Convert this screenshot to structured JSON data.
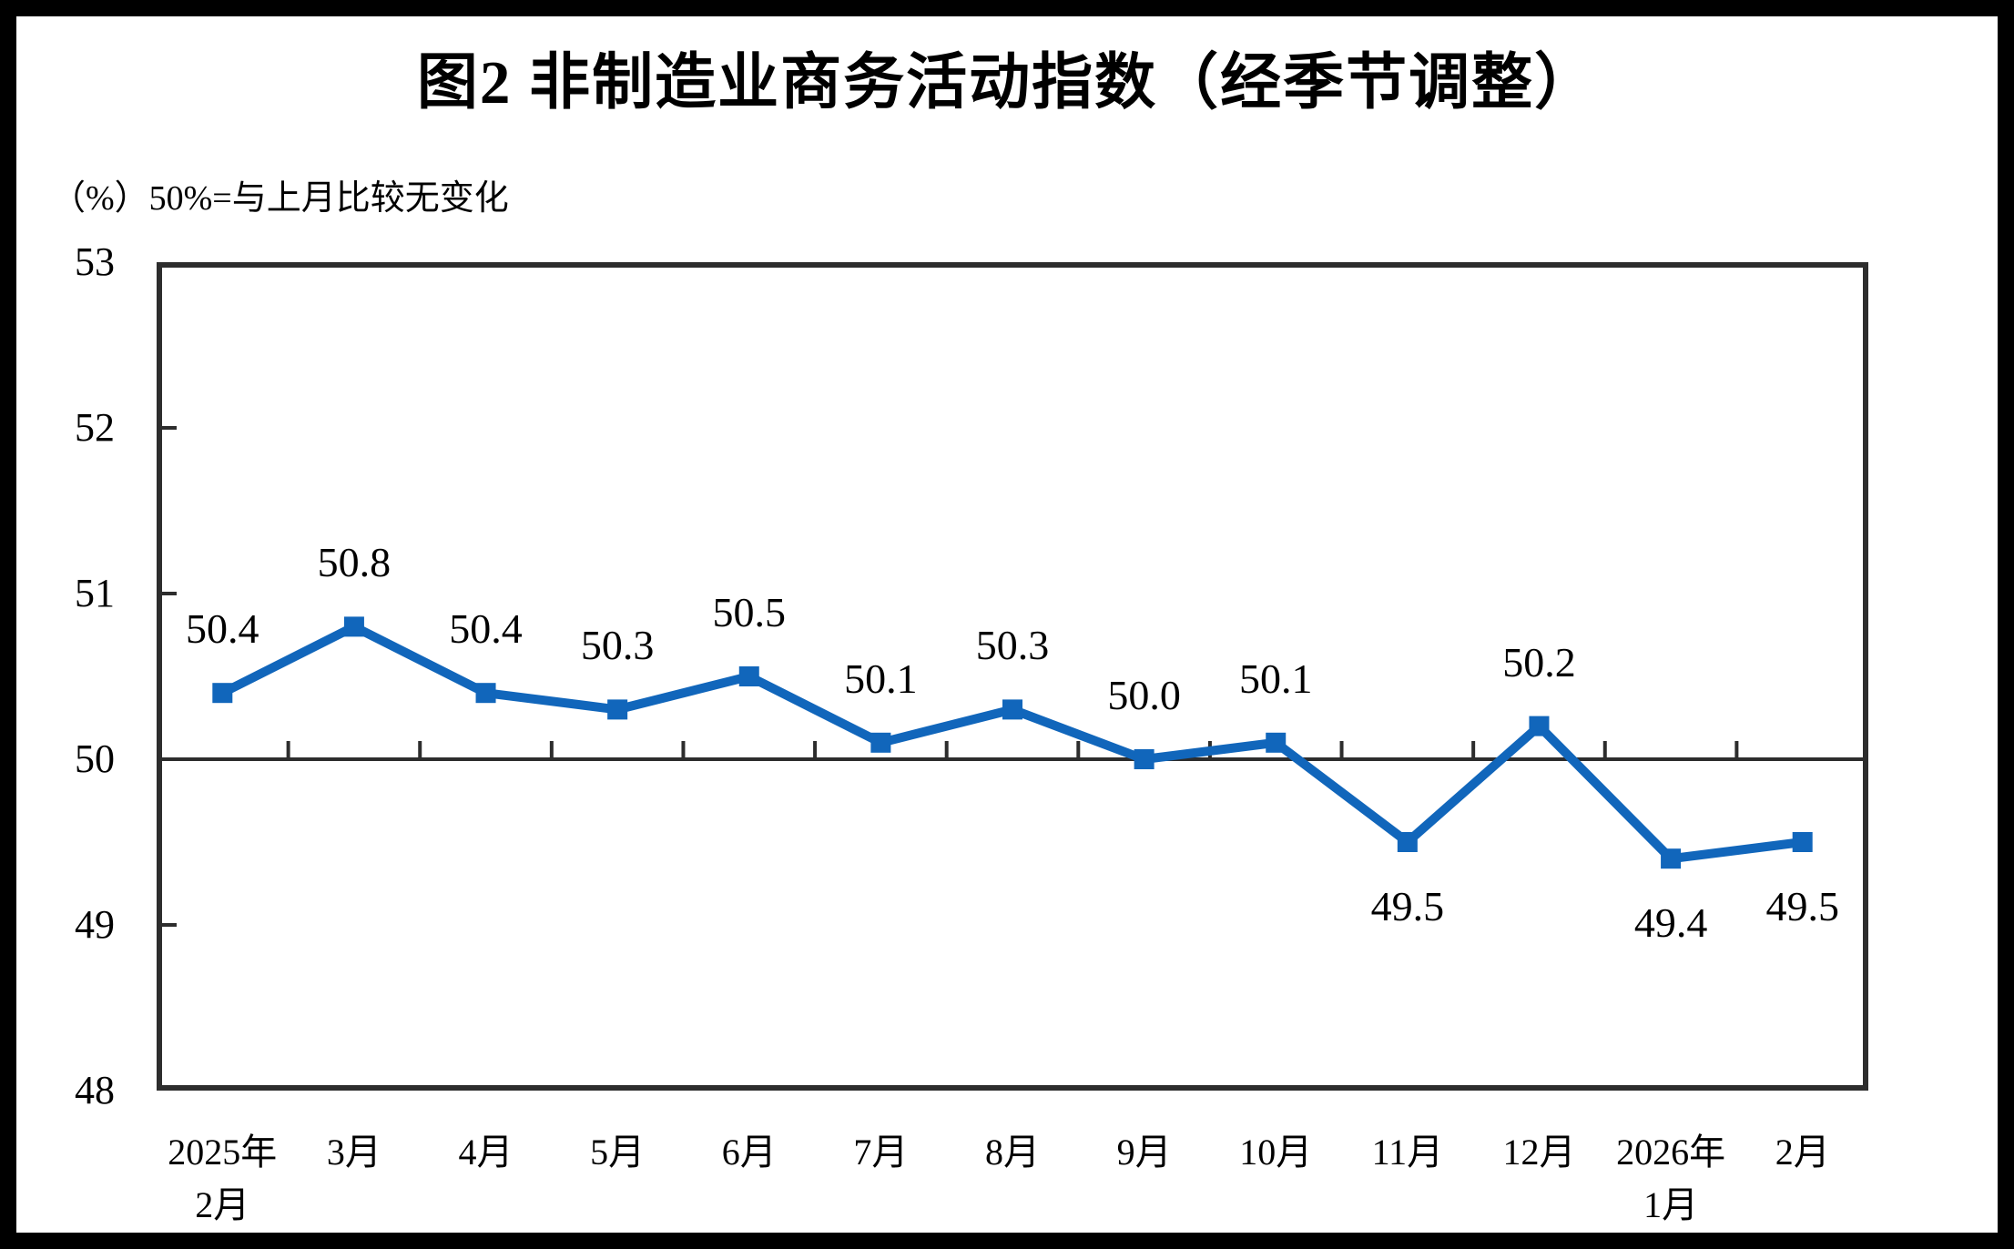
{
  "chart_data": {
    "type": "line",
    "title": "图2 非制造业商务活动指数（经季节调整）",
    "subtitle": "（%）50%=与上月比较无变化",
    "categories": [
      [
        "2025年",
        "2月"
      ],
      [
        "3月"
      ],
      [
        "4月"
      ],
      [
        "5月"
      ],
      [
        "6月"
      ],
      [
        "7月"
      ],
      [
        "8月"
      ],
      [
        "9月"
      ],
      [
        "10月"
      ],
      [
        "11月"
      ],
      [
        "12月"
      ],
      [
        "2026年",
        "1月"
      ],
      [
        "2月"
      ]
    ],
    "series": [
      {
        "values": [
          50.4,
          50.8,
          50.4,
          50.3,
          50.5,
          50.1,
          50.3,
          50.0,
          50.1,
          49.5,
          50.2,
          49.4,
          49.5
        ]
      }
    ],
    "data_labels": [
      "50.4",
      "50.8",
      "50.4",
      "50.3",
      "50.5",
      "50.1",
      "50.3",
      "50.0",
      "50.1",
      "49.5",
      "50.2",
      "49.4",
      "49.5"
    ],
    "label_positions": [
      "above",
      "above",
      "above",
      "above",
      "above",
      "above",
      "above",
      "above",
      "above",
      "below",
      "above",
      "below",
      "below"
    ],
    "yticks": [
      53,
      52,
      51,
      50,
      49,
      48
    ],
    "ylim": [
      48,
      53
    ],
    "reference_line": 50,
    "marker": "square",
    "grid": false,
    "legend": false,
    "line_color": "#1166BB",
    "axis_color": "#2D2D2D",
    "frame_color": "#000000",
    "background_color": "#FFFFFF"
  }
}
